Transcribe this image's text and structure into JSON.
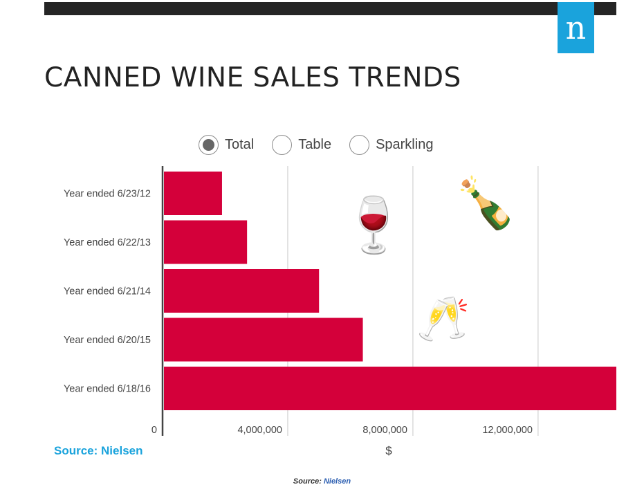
{
  "header": {
    "logo_letter": "n"
  },
  "title": "CANNED WINE SALES TRENDS",
  "filters": [
    {
      "label": "Total",
      "selected": true
    },
    {
      "label": "Table",
      "selected": false
    },
    {
      "label": "Sparkling",
      "selected": false
    }
  ],
  "chart_data": {
    "type": "bar",
    "orientation": "horizontal",
    "categories": [
      "Year ended 6/23/12",
      "Year ended 6/22/13",
      "Year ended 6/21/14",
      "Year ended 6/20/15",
      "Year ended 6/18/16"
    ],
    "values": [
      1900000,
      2700000,
      5000000,
      6400000,
      15000000
    ],
    "xlabel": "$",
    "xlim": [
      0,
      14500000
    ],
    "xticks": [
      0,
      4000000,
      8000000,
      12000000
    ],
    "xtick_labels": [
      "0",
      "4,000,000",
      "8,000,000",
      "12,000,000"
    ],
    "grid": true,
    "bar_color": "#d4003a",
    "grid_color": "#c8c8c8"
  },
  "decorations": {
    "wine_glass_icon": "🍷",
    "champagne_bottle_icon": "🍾",
    "clinking_glasses_icon": "🥂"
  },
  "source_label": "Source: Nielsen",
  "footer": {
    "prefix": "Source: ",
    "name": "Nielsen"
  }
}
